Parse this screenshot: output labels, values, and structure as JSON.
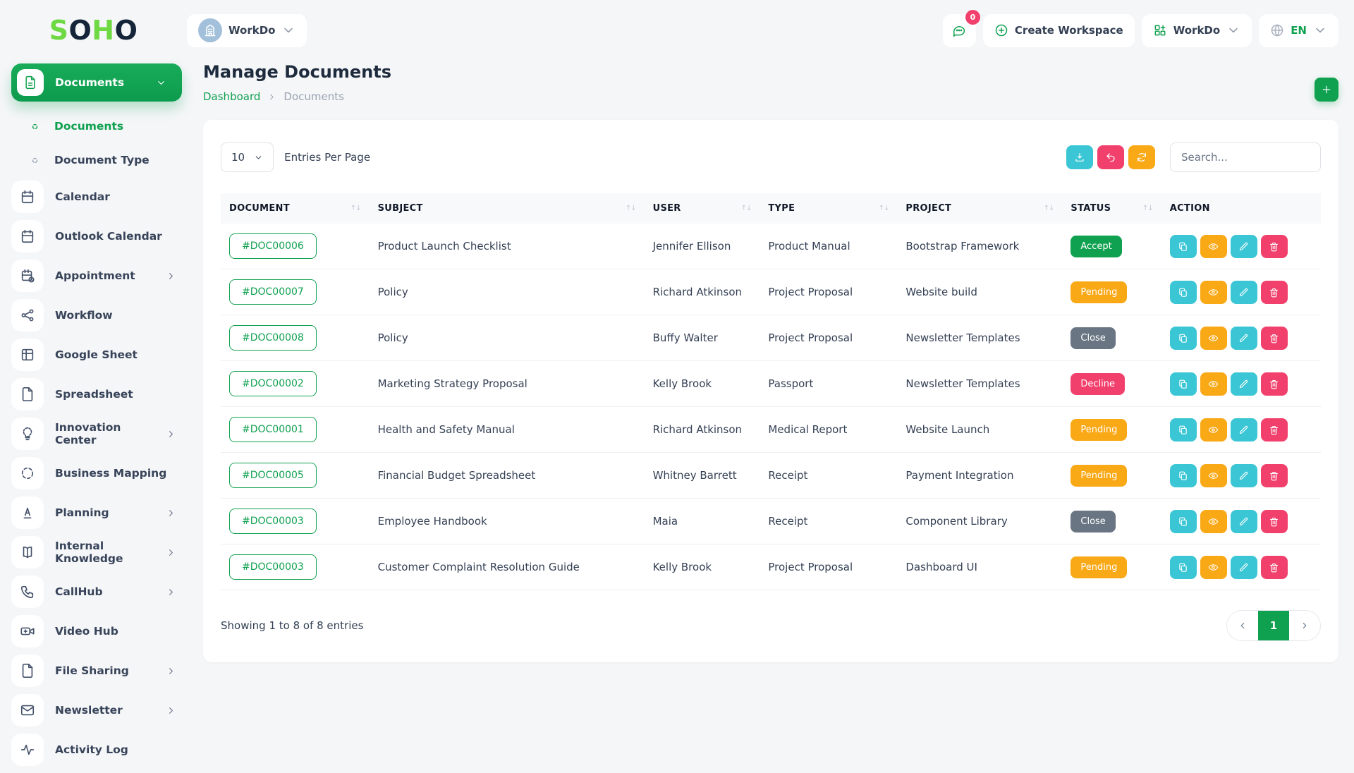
{
  "brand": {
    "name": "SOHO",
    "letters": [
      {
        "ch": "S",
        "color": "#6fd943"
      },
      {
        "ch": "O",
        "color": "#142539"
      },
      {
        "ch": "H",
        "color": "#6fd943"
      },
      {
        "ch": "O",
        "color": "#142539"
      }
    ]
  },
  "topbar": {
    "workspace_label": "WorkDo",
    "messages_badge": "0",
    "create_workspace_label": "Create Workspace",
    "app_menu_label": "WorkDo",
    "language_label": "EN"
  },
  "sidebar": {
    "items": [
      {
        "label": "Documents",
        "icon": "file-text",
        "style": "parent-active",
        "chevron": "down"
      },
      {
        "label": "Documents",
        "style": "sub",
        "active": true
      },
      {
        "label": "Document Type",
        "style": "sub",
        "active": false
      },
      {
        "label": "Calendar",
        "icon": "calendar"
      },
      {
        "label": "Outlook Calendar",
        "icon": "calendar"
      },
      {
        "label": "Appointment",
        "icon": "calendar-clock",
        "chevron": "right"
      },
      {
        "label": "Workflow",
        "icon": "workflow"
      },
      {
        "label": "Google Sheet",
        "icon": "grid"
      },
      {
        "label": "Spreadsheet",
        "icon": "file"
      },
      {
        "label": "Innovation Center",
        "icon": "bulb",
        "chevron": "right"
      },
      {
        "label": "Business Mapping",
        "icon": "dashed-circle"
      },
      {
        "label": "Planning",
        "icon": "text-a",
        "chevron": "right"
      },
      {
        "label": "Internal Knowledge",
        "icon": "book",
        "chevron": "right"
      },
      {
        "label": "CallHub",
        "icon": "phone",
        "chevron": "right"
      },
      {
        "label": "Video Hub",
        "icon": "video"
      },
      {
        "label": "File Sharing",
        "icon": "file",
        "chevron": "right"
      },
      {
        "label": "Newsletter",
        "icon": "mail",
        "chevron": "right"
      },
      {
        "label": "Activity Log",
        "icon": "activity"
      }
    ]
  },
  "page": {
    "title": "Manage Documents",
    "breadcrumb": [
      "Dashboard",
      "Documents"
    ]
  },
  "table": {
    "entries_per_page": "10",
    "entries_label": "Entries Per Page",
    "search_placeholder": "Search...",
    "toolbar_buttons": [
      {
        "name": "export",
        "icon": "download",
        "color": "#3ac6d4"
      },
      {
        "name": "reset",
        "icon": "undo",
        "color": "#f2406d"
      },
      {
        "name": "refresh",
        "icon": "refresh",
        "color": "#f9a816"
      }
    ],
    "columns": [
      {
        "label": "DOCUMENT",
        "sortable": true
      },
      {
        "label": "SUBJECT",
        "sortable": true
      },
      {
        "label": "USER",
        "sortable": true
      },
      {
        "label": "TYPE",
        "sortable": true
      },
      {
        "label": "PROJECT",
        "sortable": true
      },
      {
        "label": "STATUS",
        "sortable": true
      },
      {
        "label": "ACTION",
        "sortable": false
      }
    ],
    "status_colors": {
      "Accept": "#0fa14f",
      "Pending": "#f9a816",
      "Close": "#697582",
      "Decline": "#f2406d"
    },
    "row_actions": [
      {
        "name": "duplicate",
        "icon": "copy",
        "color": "#3ac6d4"
      },
      {
        "name": "view",
        "icon": "eye",
        "color": "#f9a816"
      },
      {
        "name": "edit",
        "icon": "pencil",
        "color": "#3ac6d4"
      },
      {
        "name": "delete",
        "icon": "trash",
        "color": "#f2406d"
      }
    ],
    "rows": [
      {
        "document": "#DOC00006",
        "subject": "Product Launch Checklist",
        "user": "Jennifer Ellison",
        "type": "Product Manual",
        "project": "Bootstrap Framework",
        "status": "Accept"
      },
      {
        "document": "#DOC00007",
        "subject": "Policy",
        "user": "Richard Atkinson",
        "type": "Project Proposal",
        "project": "Website build",
        "status": "Pending"
      },
      {
        "document": "#DOC00008",
        "subject": "Policy",
        "user": "Buffy Walter",
        "type": "Project Proposal",
        "project": "Newsletter Templates",
        "status": "Close"
      },
      {
        "document": "#DOC00002",
        "subject": "Marketing Strategy Proposal",
        "user": "Kelly Brook",
        "type": "Passport",
        "project": "Newsletter Templates",
        "status": "Decline"
      },
      {
        "document": "#DOC00001",
        "subject": "Health and Safety Manual",
        "user": "Richard Atkinson",
        "type": "Medical Report",
        "project": "Website Launch",
        "status": "Pending"
      },
      {
        "document": "#DOC00005",
        "subject": "Financial Budget Spreadsheet",
        "user": "Whitney Barrett",
        "type": "Receipt",
        "project": "Payment Integration",
        "status": "Pending"
      },
      {
        "document": "#DOC00003",
        "subject": "Employee Handbook",
        "user": "Maia",
        "type": "Receipt",
        "project": "Component Library",
        "status": "Close"
      },
      {
        "document": "#DOC00003",
        "subject": "Customer Complaint Resolution Guide",
        "user": "Kelly Brook",
        "type": "Project Proposal",
        "project": "Dashboard UI",
        "status": "Pending"
      }
    ],
    "footer_text": "Showing 1 to 8 of 8 entries",
    "pagination": {
      "current": "1"
    }
  }
}
